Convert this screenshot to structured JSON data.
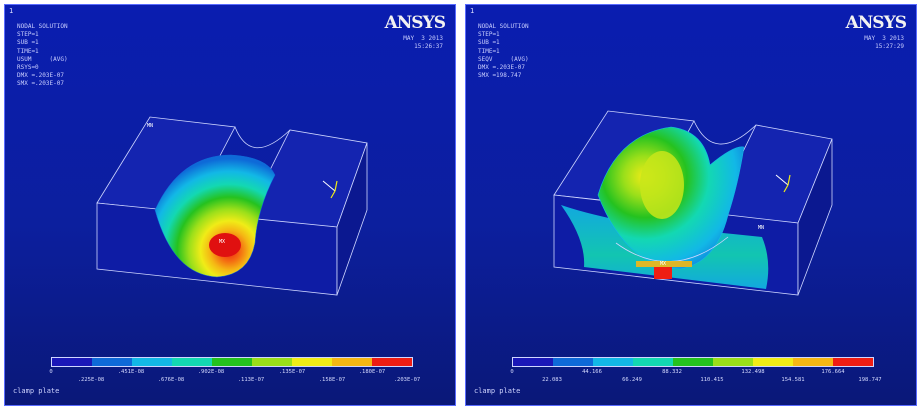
{
  "colors": {
    "background": "#0c1f9e",
    "accent": "#ff1010"
  },
  "colormap": [
    "#1a17b8",
    "#0e6ad8",
    "#12b8e6",
    "#13d8b2",
    "#25c21f",
    "#9adf1a",
    "#f0ec17",
    "#f5b714",
    "#ef1d13"
  ],
  "left": {
    "index": "1",
    "info": "NODAL SOLUTION\nSTEP=1\nSUB =1\nTIME=1\nUSUM     (AVG)\nRSYS=0\nDMX =.203E-07\nSMX =.203E-07",
    "logo": "ANSYS",
    "date": "MAY  3 2013\n15:26:37",
    "mx_label": "MX",
    "mn_label": "MN",
    "ticks_top": [
      "0",
      ".451E-08",
      ".902E-08",
      ".135E-07",
      ".180E-07"
    ],
    "ticks_bot": [
      ".225E-08",
      ".676E-08",
      ".113E-07",
      ".158E-07",
      ".203E-07"
    ],
    "caption": "clamp plate"
  },
  "right": {
    "index": "1",
    "info": "NODAL SOLUTION\nSTEP=1\nSUB =1\nTIME=1\nSEQV     (AVG)\nDMX =.203E-07\nSMX =198.747",
    "logo": "ANSYS",
    "date": "MAY  3 2013\n15:27:29",
    "mx_label": "MX",
    "mn_label": "MN",
    "ticks_top": [
      "0",
      "44.166",
      "88.332",
      "132.498",
      "176.664"
    ],
    "ticks_bot": [
      "22.083",
      "66.249",
      "110.415",
      "154.581",
      "198.747"
    ],
    "caption": "clamp plate"
  }
}
